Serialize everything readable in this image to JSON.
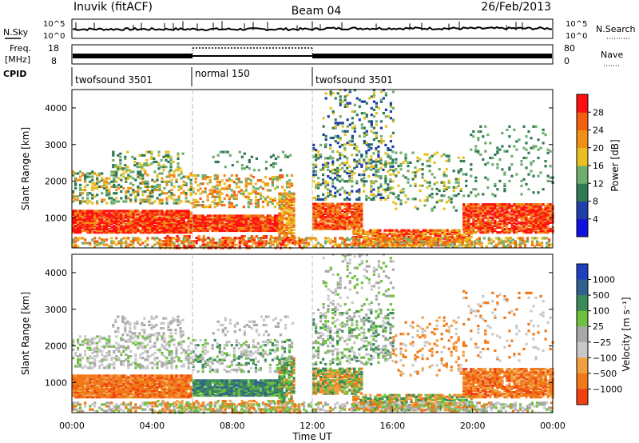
{
  "header": {
    "title": "Inuvik (fitACF)",
    "beam": "Beam 04",
    "date": "26/Feb/2013"
  },
  "noise_panel": {
    "left_label": "N.Sky",
    "right_label": "N.Search",
    "left_ticks": [
      "10^5",
      "10^0"
    ],
    "right_ticks": [
      "10^5",
      "10^0"
    ]
  },
  "freq_panel": {
    "left_label_1": "Freq.",
    "left_label_2": "[MHz]",
    "right_label": "Nave",
    "left_ticks": [
      "18",
      "8"
    ],
    "right_ticks": [
      "80",
      "0"
    ]
  },
  "cpid": {
    "label": "CPID",
    "segments": [
      {
        "name": "twofsound 3501",
        "start": "00:00",
        "end": "06:00"
      },
      {
        "name": "normal 150",
        "start": "06:00",
        "end": "12:00"
      },
      {
        "name": "twofsound 3501",
        "start": "12:00",
        "end": "24:00"
      }
    ]
  },
  "colors": {
    "power": [
      "#1010e0",
      "#2040a8",
      "#2f7a55",
      "#6fae6f",
      "#e8c020",
      "#f09018",
      "#f06010",
      "#ff1010"
    ],
    "velocity": [
      "#ff1010",
      "#f04010",
      "#f07818",
      "#f0a040",
      "#c8c8c8",
      "#a8a8a8",
      "#70c040",
      "#3a8a5a",
      "#2f6090",
      "#2040c0"
    ]
  },
  "chart_data": [
    {
      "type": "heatmap",
      "name": "power",
      "xlabel": "",
      "ylabel": "Slant Range [km]",
      "x_ticks": [
        "00:00",
        "04:00",
        "08:00",
        "12:00",
        "16:00",
        "20:00",
        "00:00"
      ],
      "y_ticks": [
        1000,
        2000,
        3000,
        4000
      ],
      "ylim": [
        180,
        4500
      ],
      "xlim_hours": [
        0,
        24
      ],
      "colorbar": {
        "label": "Power [dB]",
        "ticks": [
          "4",
          "8",
          "12",
          "16",
          "20",
          "24",
          "28"
        ],
        "range": [
          0,
          32
        ]
      }
    },
    {
      "type": "heatmap",
      "name": "velocity",
      "xlabel": "Time UT",
      "ylabel": "Slant Range [km]",
      "x_ticks": [
        "00:00",
        "04:00",
        "08:00",
        "12:00",
        "16:00",
        "20:00",
        "00:00"
      ],
      "y_ticks": [
        1000,
        2000,
        3000,
        4000
      ],
      "ylim": [
        180,
        4500
      ],
      "xlim_hours": [
        0,
        24
      ],
      "colorbar": {
        "label": "Velocity [m s⁻¹]",
        "ticks": [
          "1000",
          "500",
          "100",
          "25",
          "−25",
          "−100",
          "−500",
          "−1000"
        ]
      }
    }
  ]
}
